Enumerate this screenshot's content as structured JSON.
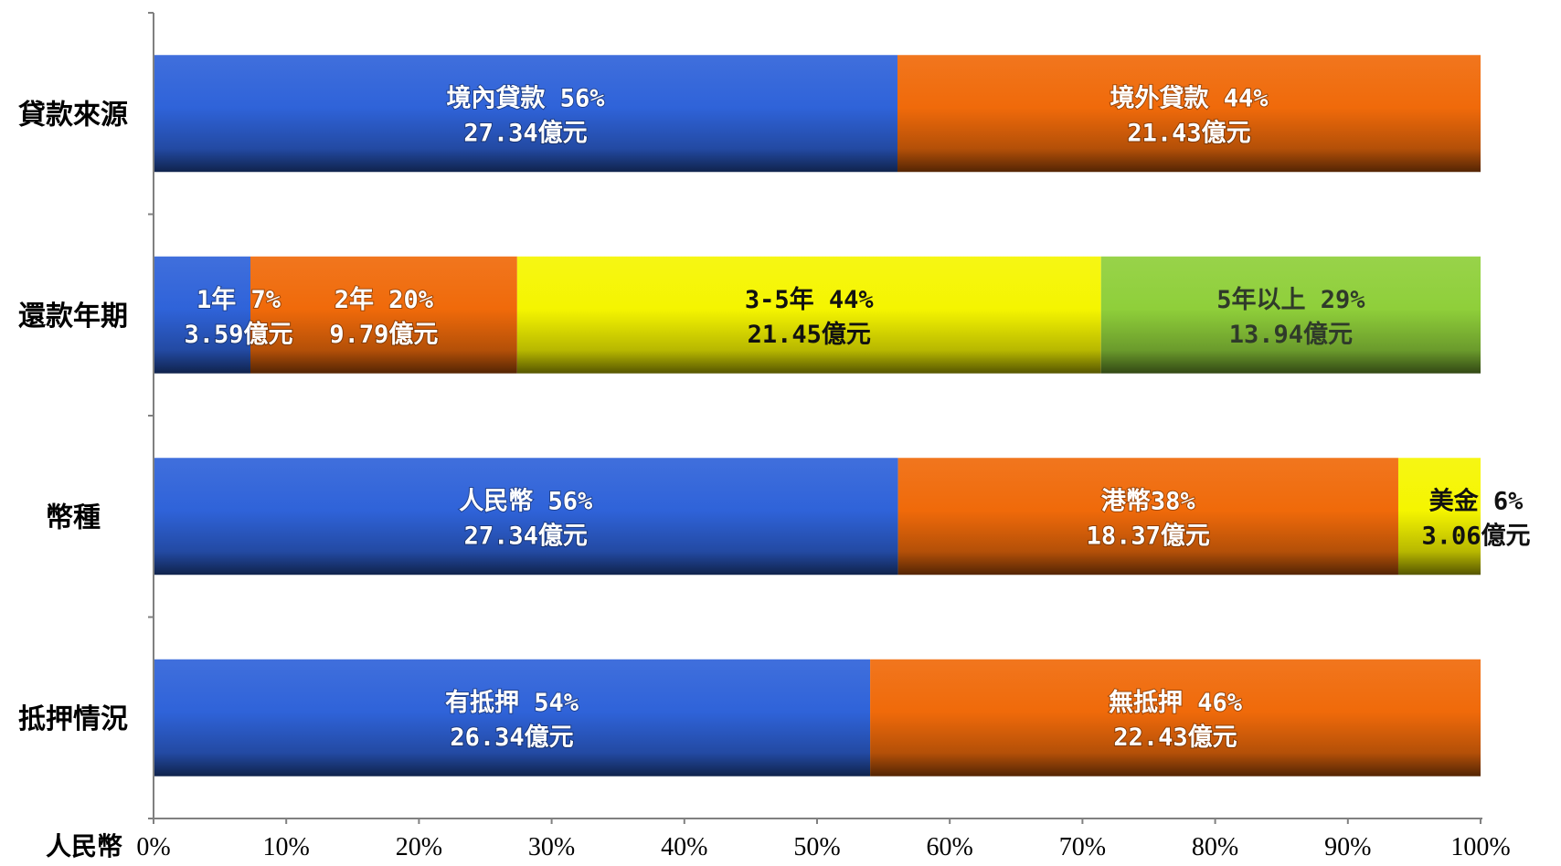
{
  "chart_data": {
    "type": "bar",
    "orientation": "horizontal",
    "stacked": true,
    "xlim": [
      0,
      100
    ],
    "x_ticks": [
      "0%",
      "10%",
      "20%",
      "30%",
      "40%",
      "50%",
      "60%",
      "70%",
      "80%",
      "90%",
      "100%"
    ],
    "x_unit_label": "人民幣",
    "grid": false,
    "categories": [
      "貸款來源",
      "還款年期",
      "幣種",
      "抵押情況"
    ],
    "rows": [
      {
        "category": "貸款來源",
        "segments": [
          {
            "value": 56.06,
            "label_line1": "境內貸款 56%",
            "label_line2": "27.34億元",
            "color": "#2f63d9"
          },
          {
            "value": 43.94,
            "label_line1": "境外貸款  44%",
            "label_line2": "21.43億元",
            "color": "#f06a0a"
          }
        ]
      },
      {
        "category": "還款年期",
        "segments": [
          {
            "value": 7.3,
            "label_line1": "1年 7%",
            "label_line2": "3.59億元",
            "color": "#2f63d9"
          },
          {
            "value": 20.1,
            "label_line1": "2年 20%",
            "label_line2": "9.79億元",
            "color": "#f06a0a"
          },
          {
            "value": 44.0,
            "label_line1": "3-5年  44%",
            "label_line2": "21.45億元",
            "color": "#f5f500"
          },
          {
            "value": 28.6,
            "label_line1": "5年以上 29%",
            "label_line2": "13.94億元",
            "color": "#8fcf3a"
          }
        ]
      },
      {
        "category": "幣種",
        "segments": [
          {
            "value": 56.1,
            "label_line1": "人民幣  56%",
            "label_line2": "27.34億元",
            "color": "#2f63d9"
          },
          {
            "value": 37.7,
            "label_line1": "港幣38%",
            "label_line2": "18.37億元",
            "color": "#f06a0a"
          },
          {
            "value": 6.2,
            "label_line1": "美金 6%",
            "label_line2": "3.06億元",
            "color": "#f5f500"
          }
        ]
      },
      {
        "category": "抵押情況",
        "segments": [
          {
            "value": 54.0,
            "label_line1": "有抵押  54%",
            "label_line2": "26.34億元",
            "color": "#2f63d9"
          },
          {
            "value": 46.0,
            "label_line1": "無抵押 46%",
            "label_line2": "22.43億元",
            "color": "#f06a0a"
          }
        ]
      }
    ]
  }
}
